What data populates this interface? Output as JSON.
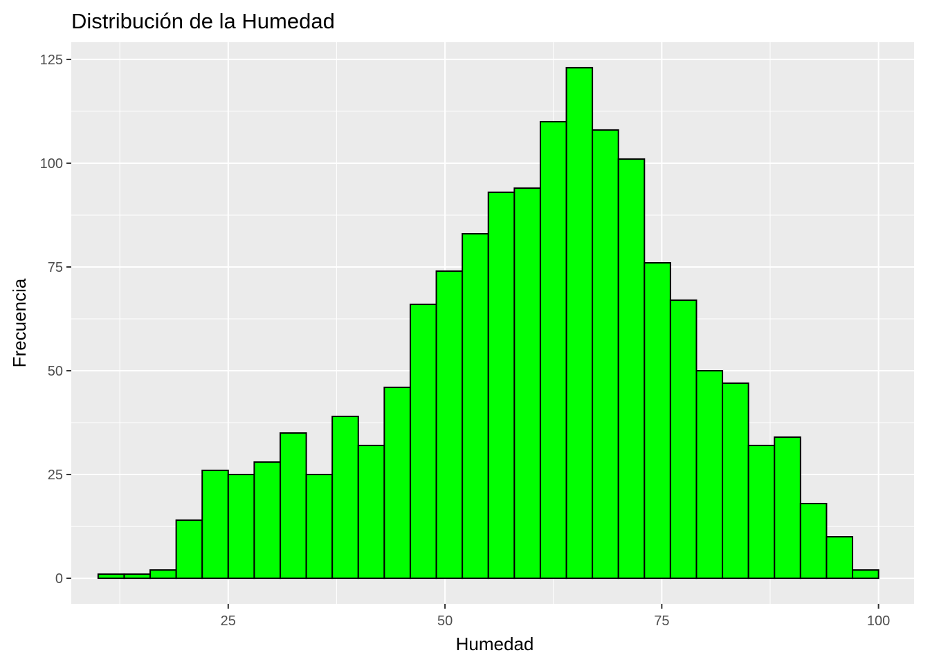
{
  "chart_data": {
    "type": "bar",
    "title": "Distribución de la Humedad",
    "xlabel": "Humedad",
    "ylabel": "Frecuencia",
    "xlim": [
      6.9,
      104.1
    ],
    "ylim": [
      -6.15,
      129.15
    ],
    "x_ticks": [
      25,
      50,
      75,
      100
    ],
    "x_tick_labels": [
      "25",
      "50",
      "75",
      "100"
    ],
    "y_ticks": [
      0,
      25,
      50,
      75,
      100,
      125
    ],
    "y_tick_labels": [
      "0",
      "25",
      "50",
      "75",
      "100",
      "125"
    ],
    "grid": true,
    "legend": "none",
    "colors": {
      "panel_background": "#ebebeb",
      "grid_line": "#ffffff",
      "bar_fill": "#00ff00",
      "bar_outline": "#000000"
    },
    "bins": [
      {
        "x_start": 10.0,
        "x_end": 13.0,
        "count": 1
      },
      {
        "x_start": 13.0,
        "x_end": 16.0,
        "count": 1
      },
      {
        "x_start": 16.0,
        "x_end": 19.0,
        "count": 2
      },
      {
        "x_start": 19.0,
        "x_end": 22.0,
        "count": 14
      },
      {
        "x_start": 22.0,
        "x_end": 25.0,
        "count": 26
      },
      {
        "x_start": 25.0,
        "x_end": 28.0,
        "count": 25
      },
      {
        "x_start": 28.0,
        "x_end": 31.0,
        "count": 28
      },
      {
        "x_start": 31.0,
        "x_end": 34.0,
        "count": 35
      },
      {
        "x_start": 34.0,
        "x_end": 37.0,
        "count": 25
      },
      {
        "x_start": 37.0,
        "x_end": 40.0,
        "count": 39
      },
      {
        "x_start": 40.0,
        "x_end": 43.0,
        "count": 32
      },
      {
        "x_start": 43.0,
        "x_end": 46.0,
        "count": 46
      },
      {
        "x_start": 46.0,
        "x_end": 49.0,
        "count": 66
      },
      {
        "x_start": 49.0,
        "x_end": 52.0,
        "count": 74
      },
      {
        "x_start": 52.0,
        "x_end": 55.0,
        "count": 83
      },
      {
        "x_start": 55.0,
        "x_end": 58.0,
        "count": 93
      },
      {
        "x_start": 58.0,
        "x_end": 61.0,
        "count": 94
      },
      {
        "x_start": 61.0,
        "x_end": 64.0,
        "count": 110
      },
      {
        "x_start": 64.0,
        "x_end": 67.0,
        "count": 123
      },
      {
        "x_start": 67.0,
        "x_end": 70.0,
        "count": 108
      },
      {
        "x_start": 70.0,
        "x_end": 73.0,
        "count": 101
      },
      {
        "x_start": 73.0,
        "x_end": 76.0,
        "count": 76
      },
      {
        "x_start": 76.0,
        "x_end": 79.0,
        "count": 67
      },
      {
        "x_start": 79.0,
        "x_end": 82.0,
        "count": 50
      },
      {
        "x_start": 82.0,
        "x_end": 85.0,
        "count": 47
      },
      {
        "x_start": 85.0,
        "x_end": 88.0,
        "count": 32
      },
      {
        "x_start": 88.0,
        "x_end": 91.0,
        "count": 34
      },
      {
        "x_start": 91.0,
        "x_end": 94.0,
        "count": 18
      },
      {
        "x_start": 94.0,
        "x_end": 97.0,
        "count": 10
      },
      {
        "x_start": 97.0,
        "x_end": 100.0,
        "count": 2
      }
    ]
  }
}
